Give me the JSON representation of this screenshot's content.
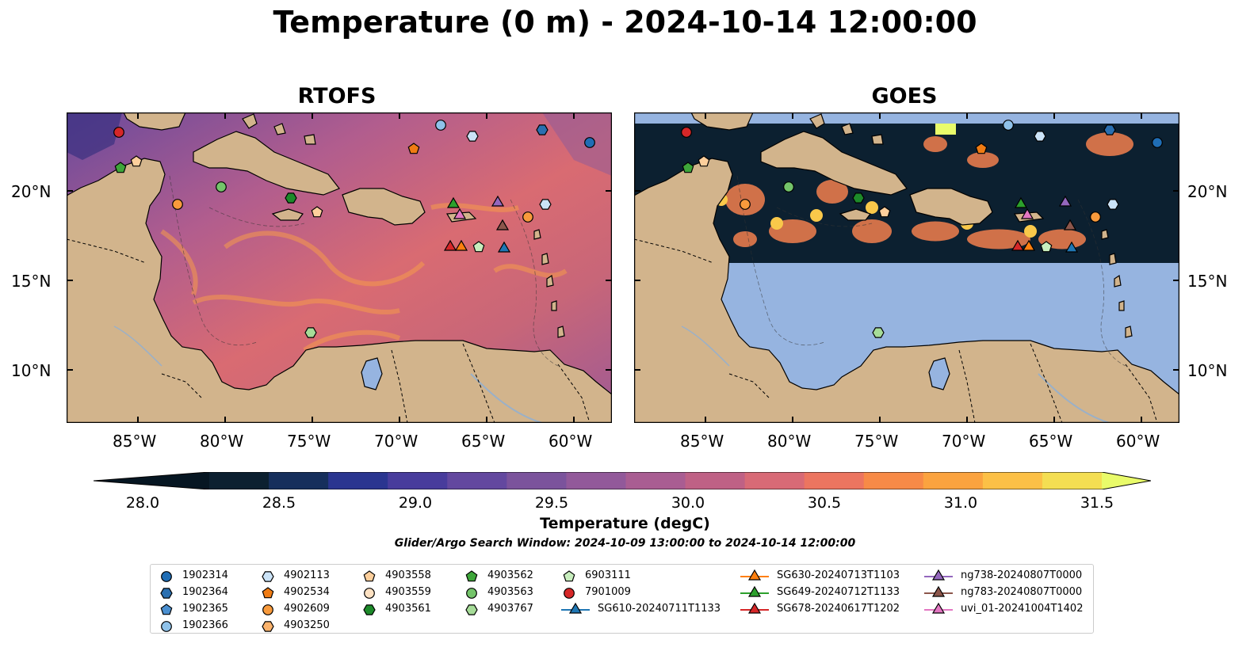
{
  "title": "Temperature (0 m) - 2024-10-14 12:00:00",
  "panels": [
    {
      "title": "RTOFS"
    },
    {
      "title": "GOES"
    }
  ],
  "axes": {
    "lat_labels": [
      "20°N",
      "15°N",
      "10°N"
    ],
    "lon_labels": [
      "85°W",
      "80°W",
      "75°W",
      "70°W",
      "65°W",
      "60°W"
    ]
  },
  "colorbar": {
    "label": "Temperature (degC)",
    "ticks": [
      "28.0",
      "28.5",
      "29.0",
      "29.5",
      "30.0",
      "30.5",
      "31.0",
      "31.5"
    ],
    "colors": [
      "#0c2030",
      "#162f5c",
      "#2a3590",
      "#483c9c",
      "#63489f",
      "#7b539c",
      "#92599a",
      "#a95d92",
      "#bf6185",
      "#d86a76",
      "#ec7560",
      "#f78a47",
      "#fba33f",
      "#fcc046",
      "#f4de52"
    ],
    "under_color": "#061622",
    "over_color": "#e9fb6a"
  },
  "search_window": "Glider/Argo Search Window: 2024-10-09 13:00:00 to 2024-10-14 12:00:00",
  "legend": {
    "columns": [
      [
        {
          "label": "1902314",
          "marker": "circle",
          "color": "#1f6db5"
        },
        {
          "label": "1902364",
          "marker": "hexagon",
          "color": "#2a6fb0"
        },
        {
          "label": "1902365",
          "marker": "pentagon",
          "color": "#4a8fd0"
        },
        {
          "label": "1902366",
          "marker": "circle",
          "color": "#8fc2ea"
        }
      ],
      [
        {
          "label": "4902113",
          "marker": "hexagon",
          "color": "#cbe3f7"
        },
        {
          "label": "4902534",
          "marker": "pentagon",
          "color": "#f07c14"
        },
        {
          "label": "4902609",
          "marker": "circle",
          "color": "#f89a3c"
        },
        {
          "label": "4903250",
          "marker": "hexagon",
          "color": "#fbb36d"
        }
      ],
      [
        {
          "label": "4903558",
          "marker": "pentagon",
          "color": "#fdcf9c"
        },
        {
          "label": "4903559",
          "marker": "circle",
          "color": "#fde1c2"
        },
        {
          "label": "4903561",
          "marker": "hexagon",
          "color": "#1d8a2a"
        }
      ],
      [
        {
          "label": "4903562",
          "marker": "pentagon",
          "color": "#3ea63a"
        },
        {
          "label": "4903563",
          "marker": "circle",
          "color": "#74c46a"
        },
        {
          "label": "4903767",
          "marker": "hexagon",
          "color": "#a6dc98"
        }
      ],
      [
        {
          "label": "6903111",
          "marker": "pentagon",
          "color": "#c8eebe"
        },
        {
          "label": "7901009",
          "marker": "circle",
          "color": "#d62728"
        },
        {
          "label": "SG610-20240711T1133",
          "marker": "triangle",
          "color": "#1f77b4"
        }
      ],
      [
        {
          "label": "SG630-20240713T1103",
          "marker": "triangle",
          "color": "#ff7f0e"
        },
        {
          "label": "SG649-20240712T1133",
          "marker": "triangle",
          "color": "#2ca02c"
        },
        {
          "label": "SG678-20240617T1202",
          "marker": "triangle",
          "color": "#d62728"
        }
      ],
      [
        {
          "label": "ng738-20240807T0000",
          "marker": "triangle",
          "color": "#9467bd"
        },
        {
          "label": "ng783-20240807T0000",
          "marker": "triangle",
          "color": "#8c564b"
        },
        {
          "label": "uvi_01-20241004T1402",
          "marker": "triangle",
          "color": "#e377c2"
        }
      ]
    ]
  },
  "colors": {
    "land": "#d2b48c",
    "ocean_fill": "#b05e8c",
    "goes_nodata": "#96b4e0",
    "goes_cloud": "#0c2030",
    "river": "#9ab0c8"
  }
}
